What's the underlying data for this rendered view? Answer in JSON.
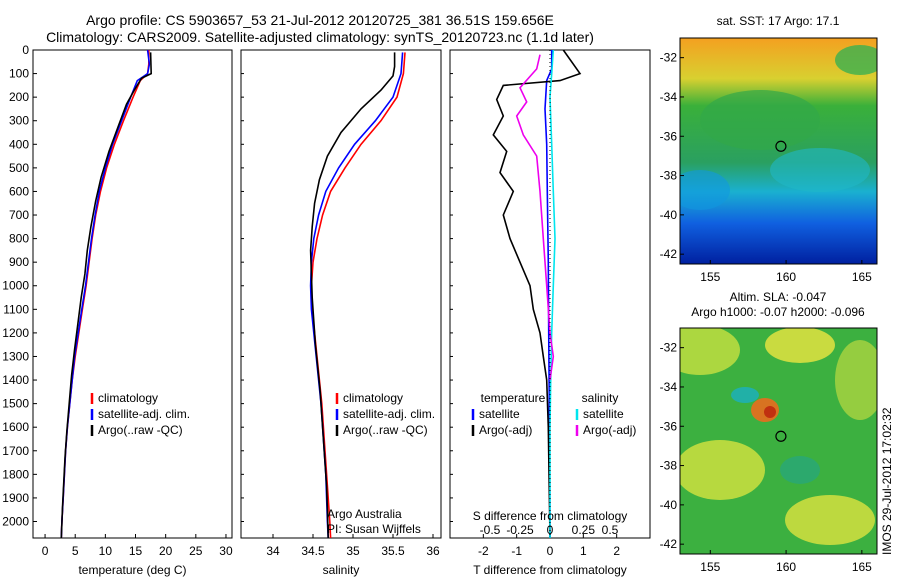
{
  "header": {
    "line1": "Argo profile: CS 5903657_53 21-Jul-2012 20120725_381 36.51S 159.656E",
    "line2": "Climatology: CARS2009. Satellite-adjusted climatology: synTS_20120723.nc (1.1d later)"
  },
  "stamp": "IMOS 29-Jul-2012 17:02:32",
  "colors": {
    "climatology": "#ff0000",
    "satellite": "#0000ff",
    "argo": "#000000",
    "sal_satellite": "#00e5ee",
    "sal_argo": "#ee00ee"
  },
  "chart_data": [
    {
      "type": "line",
      "id": "temperature",
      "xlabel": "temperature (deg C)",
      "ylabel": "",
      "xlim": [
        -2,
        31
      ],
      "ylim": [
        2070,
        0
      ],
      "xticks": [
        0,
        5,
        10,
        15,
        20,
        25,
        30
      ],
      "yticks": [
        0,
        100,
        200,
        300,
        400,
        500,
        600,
        700,
        800,
        900,
        1000,
        1100,
        1200,
        1300,
        1400,
        1500,
        1600,
        1700,
        1800,
        1900,
        2000
      ],
      "legend": [
        "climatology",
        "satellite-adj. clim.",
        "Argo(..raw -QC)"
      ],
      "series": [
        {
          "name": "climatology",
          "color": "#ff0000",
          "points": [
            [
              17.2,
              0
            ],
            [
              17.2,
              60
            ],
            [
              17.0,
              100
            ],
            [
              15.8,
              130
            ],
            [
              14.6,
              200
            ],
            [
              13.0,
              300
            ],
            [
              11.5,
              400
            ],
            [
              10.2,
              500
            ],
            [
              9.2,
              600
            ],
            [
              8.4,
              700
            ],
            [
              7.8,
              800
            ],
            [
              7.3,
              900
            ],
            [
              6.8,
              1000
            ],
            [
              6.2,
              1100
            ],
            [
              5.6,
              1200
            ],
            [
              5.0,
              1300
            ],
            [
              4.5,
              1400
            ],
            [
              4.1,
              1500
            ],
            [
              3.7,
              1600
            ],
            [
              3.4,
              1700
            ],
            [
              3.2,
              1800
            ],
            [
              3.0,
              1900
            ],
            [
              2.8,
              2000
            ],
            [
              2.7,
              2070
            ]
          ]
        },
        {
          "name": "satellite-adj. clim.",
          "color": "#0000ff",
          "points": [
            [
              17.0,
              0
            ],
            [
              17.3,
              60
            ],
            [
              17.0,
              100
            ],
            [
              15.3,
              130
            ],
            [
              14.2,
              200
            ],
            [
              12.7,
              300
            ],
            [
              11.2,
              400
            ],
            [
              10.0,
              500
            ],
            [
              9.0,
              600
            ],
            [
              8.3,
              700
            ],
            [
              7.7,
              800
            ],
            [
              7.2,
              900
            ],
            [
              6.7,
              1000
            ],
            [
              6.1,
              1100
            ],
            [
              5.5,
              1200
            ],
            [
              4.9,
              1300
            ],
            [
              4.5,
              1400
            ],
            [
              4.1,
              1500
            ],
            [
              3.7,
              1600
            ],
            [
              3.4,
              1700
            ],
            [
              3.2,
              1800
            ],
            [
              3.0,
              1900
            ],
            [
              2.8,
              2000
            ],
            [
              2.7,
              2070
            ]
          ]
        },
        {
          "name": "Argo(..raw -QC)",
          "color": "#000000",
          "points": [
            [
              17.5,
              10
            ],
            [
              17.6,
              100
            ],
            [
              16.0,
              120
            ],
            [
              14.8,
              170
            ],
            [
              13.5,
              230
            ],
            [
              12.2,
              320
            ],
            [
              10.6,
              430
            ],
            [
              9.3,
              540
            ],
            [
              8.4,
              640
            ],
            [
              7.6,
              750
            ],
            [
              7.0,
              850
            ],
            [
              6.6,
              950
            ],
            [
              6.0,
              1050
            ],
            [
              5.5,
              1150
            ],
            [
              4.9,
              1270
            ],
            [
              4.4,
              1380
            ],
            [
              4.0,
              1500
            ],
            [
              3.6,
              1620
            ],
            [
              3.3,
              1730
            ],
            [
              3.1,
              1830
            ],
            [
              2.9,
              1940
            ],
            [
              2.7,
              2070
            ]
          ]
        }
      ]
    },
    {
      "type": "line",
      "id": "salinity",
      "xlabel": "salinity",
      "ylabel": "",
      "xlim": [
        33.6,
        36.1
      ],
      "ylim": [
        2070,
        0
      ],
      "xticks": [
        34,
        34.5,
        35,
        35.5,
        36
      ],
      "legend": [
        "climatology",
        "satellite-adj. clim.",
        "Argo(..raw -QC)"
      ],
      "annotation": [
        "Argo Australia",
        "PI: Susan Wijffels"
      ],
      "series": [
        {
          "name": "climatology",
          "color": "#ff0000",
          "points": [
            [
              35.65,
              10
            ],
            [
              35.63,
              100
            ],
            [
              35.55,
              200
            ],
            [
              35.35,
              300
            ],
            [
              35.1,
              400
            ],
            [
              34.9,
              500
            ],
            [
              34.72,
              600
            ],
            [
              34.62,
              700
            ],
            [
              34.55,
              800
            ],
            [
              34.5,
              900
            ],
            [
              34.48,
              1000
            ],
            [
              34.49,
              1100
            ],
            [
              34.52,
              1200
            ],
            [
              34.55,
              1300
            ],
            [
              34.58,
              1400
            ],
            [
              34.61,
              1500
            ],
            [
              34.63,
              1600
            ],
            [
              34.65,
              1700
            ],
            [
              34.67,
              1800
            ],
            [
              34.69,
              1900
            ],
            [
              34.71,
              2000
            ],
            [
              34.72,
              2070
            ]
          ]
        },
        {
          "name": "satellite-adj. clim.",
          "color": "#0000ff",
          "points": [
            [
              35.62,
              10
            ],
            [
              35.6,
              100
            ],
            [
              35.5,
              200
            ],
            [
              35.28,
              300
            ],
            [
              35.02,
              400
            ],
            [
              34.82,
              500
            ],
            [
              34.66,
              600
            ],
            [
              34.57,
              700
            ],
            [
              34.51,
              800
            ],
            [
              34.48,
              900
            ],
            [
              34.47,
              1000
            ],
            [
              34.48,
              1100
            ],
            [
              34.51,
              1200
            ],
            [
              34.54,
              1300
            ],
            [
              34.57,
              1400
            ],
            [
              34.6,
              1500
            ],
            [
              34.62,
              1600
            ],
            [
              34.64,
              1700
            ],
            [
              34.66,
              1800
            ],
            [
              34.67,
              1900
            ],
            [
              34.68,
              2000
            ],
            [
              34.69,
              2070
            ]
          ]
        },
        {
          "name": "Argo(..raw -QC)",
          "color": "#000000",
          "points": [
            [
              35.52,
              10
            ],
            [
              35.52,
              70
            ],
            [
              35.5,
              110
            ],
            [
              35.35,
              170
            ],
            [
              35.1,
              250
            ],
            [
              34.85,
              350
            ],
            [
              34.68,
              450
            ],
            [
              34.58,
              550
            ],
            [
              34.52,
              650
            ],
            [
              34.49,
              750
            ],
            [
              34.47,
              850
            ],
            [
              34.48,
              950
            ],
            [
              34.49,
              1050
            ],
            [
              34.51,
              1150
            ],
            [
              34.53,
              1250
            ],
            [
              34.56,
              1350
            ],
            [
              34.59,
              1450
            ],
            [
              34.61,
              1550
            ],
            [
              34.63,
              1650
            ],
            [
              34.65,
              1750
            ],
            [
              34.67,
              1850
            ],
            [
              34.68,
              1950
            ],
            [
              34.69,
              2070
            ]
          ]
        }
      ]
    },
    {
      "type": "line",
      "id": "differences",
      "xlabel": "T difference from climatology",
      "xlabel2": "S difference from climatology",
      "xlim": [
        -3,
        3
      ],
      "ylim": [
        2070,
        0
      ],
      "xticks": [
        -2,
        -1,
        0,
        1,
        2
      ],
      "xticks2": [
        [
          -1.8,
          "-0.5"
        ],
        [
          -0.9,
          "-0.25"
        ],
        [
          0,
          "0"
        ],
        [
          1.0,
          "0.25"
        ],
        [
          1.8,
          "0.5"
        ]
      ],
      "legend_t_head": "temperature",
      "legend_s_head": "salinity",
      "legend": [
        "satellite",
        "Argo(-adj)",
        "satellite",
        "Argo(-adj)"
      ],
      "series": [
        {
          "name": "satellite",
          "color": "#0000ff",
          "points": [
            [
              0.05,
              0
            ],
            [
              0.05,
              80
            ],
            [
              -0.1,
              130
            ],
            [
              -0.15,
              250
            ],
            [
              -0.1,
              400
            ],
            [
              -0.08,
              600
            ],
            [
              -0.05,
              900
            ],
            [
              -0.04,
              1200
            ],
            [
              -0.02,
              1500
            ],
            [
              -0.01,
              1800
            ],
            [
              0.0,
              2070
            ]
          ]
        },
        {
          "name": "Argo(-adj)",
          "color": "#000000",
          "points": [
            [
              0.4,
              0
            ],
            [
              0.9,
              100
            ],
            [
              0.3,
              130
            ],
            [
              -1.4,
              150
            ],
            [
              -1.6,
              210
            ],
            [
              -1.4,
              280
            ],
            [
              -1.7,
              360
            ],
            [
              -1.3,
              430
            ],
            [
              -1.5,
              520
            ],
            [
              -1.1,
              600
            ],
            [
              -1.4,
              700
            ],
            [
              -1.2,
              800
            ],
            [
              -0.9,
              900
            ],
            [
              -0.6,
              1000
            ],
            [
              -0.5,
              1100
            ],
            [
              -0.3,
              1200
            ],
            [
              -0.2,
              1300
            ],
            [
              -0.1,
              1400
            ],
            [
              -0.05,
              1600
            ],
            [
              0.0,
              2070
            ]
          ]
        },
        {
          "name": "satellite",
          "color": "#00e5ee",
          "points": [
            [
              0.1,
              0
            ],
            [
              0.05,
              100
            ],
            [
              0.0,
              200
            ],
            [
              0.05,
              400
            ],
            [
              0.1,
              600
            ],
            [
              0.15,
              800
            ],
            [
              0.1,
              1000
            ],
            [
              0.05,
              1200
            ],
            [
              0.02,
              1400
            ],
            [
              0.0,
              1600
            ],
            [
              0.0,
              2070
            ]
          ]
        },
        {
          "name": "Argo(-adj)",
          "color": "#ee00ee",
          "points": [
            [
              -0.3,
              20
            ],
            [
              -0.4,
              80
            ],
            [
              -0.9,
              160
            ],
            [
              -0.7,
              220
            ],
            [
              -1.0,
              280
            ],
            [
              -0.8,
              360
            ],
            [
              -0.4,
              450
            ],
            [
              -0.3,
              600
            ],
            [
              -0.2,
              800
            ],
            [
              -0.1,
              1000
            ],
            [
              0.0,
              1200
            ],
            [
              0.1,
              1300
            ],
            [
              0.0,
              1400
            ]
          ]
        }
      ]
    },
    {
      "type": "heatmap",
      "id": "sst_map",
      "title": "sat. SST: 17  Argo: 17.1",
      "xlim": [
        153,
        166
      ],
      "ylim": [
        -42.5,
        -31
      ],
      "xticks": [
        155,
        160,
        165
      ],
      "yticks": [
        -32,
        -34,
        -36,
        -38,
        -40,
        -42
      ],
      "marker": [
        159.66,
        -36.51
      ]
    },
    {
      "type": "heatmap",
      "id": "sla_map",
      "title": "Altim. SLA: -0.047",
      "subtitle": "Argo h1000: -0.07  h2000: -0.096",
      "xlim": [
        153,
        166
      ],
      "ylim": [
        -42.5,
        -31
      ],
      "xticks": [
        155,
        160,
        165
      ],
      "yticks": [
        -32,
        -34,
        -36,
        -38,
        -40,
        -42
      ],
      "marker": [
        159.66,
        -36.51
      ]
    }
  ]
}
